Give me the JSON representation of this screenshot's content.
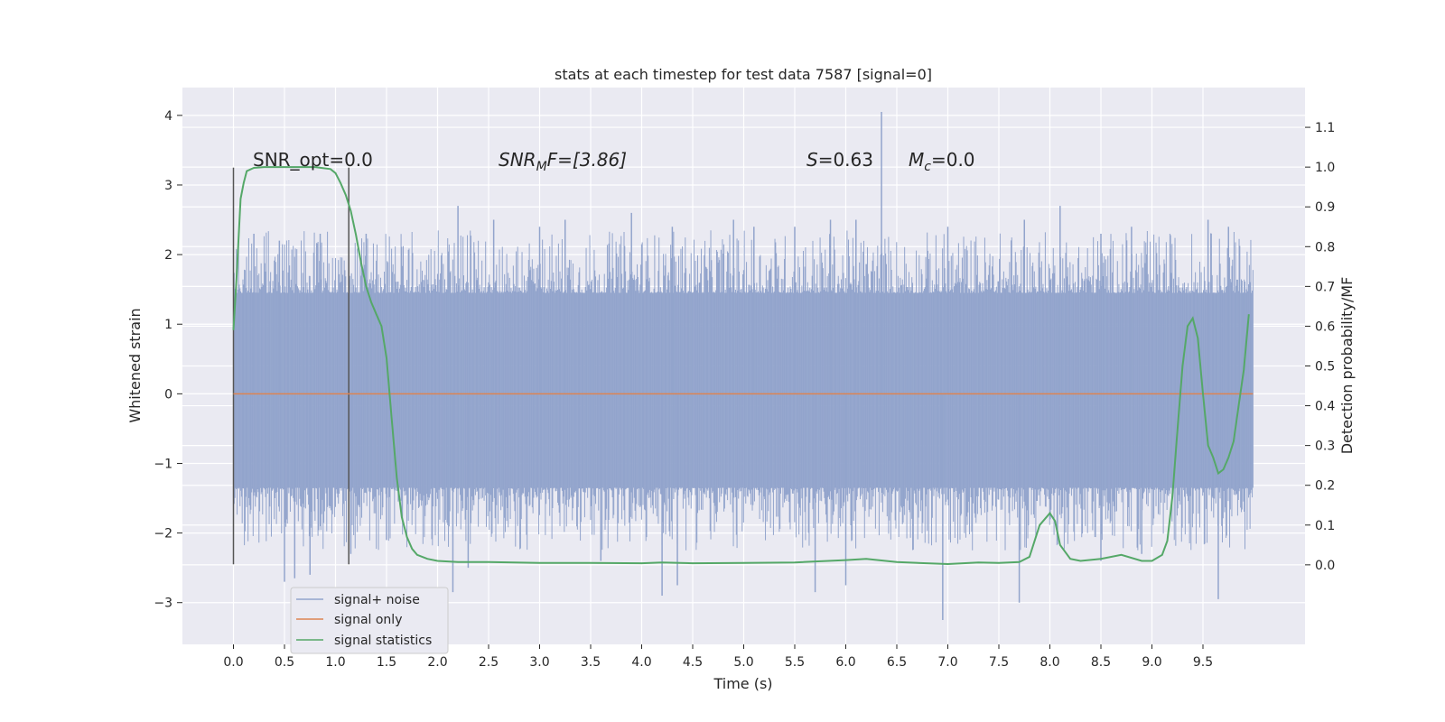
{
  "chart_data": {
    "type": "line",
    "title": "stats at each timestep for test data 7587 [signal=0]",
    "xlabel": "Time (s)",
    "ylabel": "Whitened strain",
    "ylabel_right": "Detection probability/MF",
    "xlim": [
      -0.5,
      10.5
    ],
    "ylim": [
      -3.6,
      4.4
    ],
    "ylim_right": [
      -0.2,
      1.2
    ],
    "xticks": [
      "0.0",
      "0.5",
      "1.0",
      "1.5",
      "2.0",
      "2.5",
      "3.0",
      "3.5",
      "4.0",
      "4.5",
      "5.0",
      "5.5",
      "6.0",
      "6.5",
      "7.0",
      "7.5",
      "8.0",
      "8.5",
      "9.0",
      "9.5"
    ],
    "yticks": [
      "−3",
      "−2",
      "−1",
      "0",
      "1",
      "2",
      "3",
      "4"
    ],
    "yticks_right": [
      "0.0",
      "0.1",
      "0.2",
      "0.3",
      "0.4",
      "0.5",
      "0.6",
      "0.7",
      "0.8",
      "0.9",
      "1.0",
      "1.1"
    ],
    "grid": true,
    "legend_position": "lower-left",
    "annotations": {
      "snr_opt": "SNR_opt=0.0",
      "snr_mf_prefix": "SNR",
      "snr_mf_sub": "M",
      "snr_mf_suffix": "F=[3.86]",
      "s_sym": "S",
      "s_val": "=0.63",
      "mc_sym": "M",
      "mc_sub": "c",
      "mc_val": "=0.0"
    },
    "vertical_markers": [
      0.0,
      1.13
    ],
    "series": [
      {
        "name": "signal+ noise",
        "color": "#92a4cc",
        "band": {
          "x_start": 0.0,
          "x_end": 9.99,
          "typical_low": -1.5,
          "typical_high": 1.6
        },
        "spikes": [
          [
            0.2,
            2.3
          ],
          [
            0.45,
            2.2
          ],
          [
            0.85,
            2.3
          ],
          [
            1.3,
            2.3
          ],
          [
            2.2,
            2.7
          ],
          [
            2.55,
            2.5
          ],
          [
            3.0,
            2.4
          ],
          [
            3.25,
            2.5
          ],
          [
            3.9,
            2.6
          ],
          [
            4.3,
            2.4
          ],
          [
            4.9,
            2.5
          ],
          [
            5.1,
            2.4
          ],
          [
            5.5,
            2.4
          ],
          [
            5.85,
            2.5
          ],
          [
            6.1,
            2.5
          ],
          [
            6.35,
            4.05
          ],
          [
            7.0,
            2.4
          ],
          [
            7.75,
            2.5
          ],
          [
            8.1,
            2.7
          ],
          [
            8.5,
            2.3
          ],
          [
            8.8,
            2.4
          ],
          [
            9.55,
            2.5
          ],
          [
            9.75,
            2.4
          ],
          [
            0.5,
            -2.7
          ],
          [
            0.6,
            -2.65
          ],
          [
            0.75,
            -2.6
          ],
          [
            1.15,
            -2.3
          ],
          [
            2.15,
            -2.85
          ],
          [
            2.3,
            -2.5
          ],
          [
            4.2,
            -2.9
          ],
          [
            4.35,
            -2.75
          ],
          [
            5.7,
            -2.85
          ],
          [
            6.0,
            -2.75
          ],
          [
            6.95,
            -3.25
          ],
          [
            7.7,
            -3.0
          ],
          [
            8.5,
            -2.4
          ],
          [
            9.65,
            -2.95
          ],
          [
            1.5,
            -2.1
          ],
          [
            3.6,
            -2.4
          ],
          [
            8.9,
            -2.3
          ]
        ]
      },
      {
        "name": "signal only",
        "color": "#dd8452",
        "x": [
          0.0,
          9.99
        ],
        "y": [
          0.0,
          0.0
        ]
      },
      {
        "name": "signal statistics",
        "color": "#55a868",
        "axis": "right",
        "x": [
          0.0,
          0.03,
          0.07,
          0.1,
          0.13,
          0.2,
          0.3,
          0.5,
          0.8,
          0.95,
          1.0,
          1.05,
          1.1,
          1.15,
          1.2,
          1.25,
          1.3,
          1.35,
          1.4,
          1.45,
          1.5,
          1.55,
          1.6,
          1.65,
          1.7,
          1.75,
          1.8,
          1.9,
          2.0,
          2.2,
          2.5,
          3.0,
          3.5,
          4.0,
          4.2,
          4.5,
          5.0,
          5.5,
          6.0,
          6.2,
          6.5,
          7.0,
          7.3,
          7.5,
          7.7,
          7.8,
          7.9,
          8.0,
          8.05,
          8.1,
          8.2,
          8.3,
          8.5,
          8.7,
          8.9,
          9.0,
          9.1,
          9.15,
          9.2,
          9.25,
          9.3,
          9.35,
          9.4,
          9.45,
          9.5,
          9.55,
          9.6,
          9.65,
          9.7,
          9.75,
          9.8,
          9.85,
          9.9,
          9.95
        ],
        "y": [
          0.59,
          0.72,
          0.92,
          0.96,
          0.99,
          0.998,
          1.0,
          1.0,
          1.0,
          0.995,
          0.985,
          0.96,
          0.93,
          0.89,
          0.83,
          0.76,
          0.7,
          0.66,
          0.63,
          0.6,
          0.52,
          0.37,
          0.22,
          0.12,
          0.07,
          0.04,
          0.025,
          0.015,
          0.01,
          0.007,
          0.007,
          0.005,
          0.005,
          0.004,
          0.006,
          0.004,
          0.005,
          0.006,
          0.012,
          0.015,
          0.007,
          0.002,
          0.006,
          0.005,
          0.007,
          0.02,
          0.1,
          0.13,
          0.11,
          0.05,
          0.015,
          0.01,
          0.015,
          0.025,
          0.01,
          0.01,
          0.025,
          0.06,
          0.17,
          0.34,
          0.5,
          0.6,
          0.62,
          0.57,
          0.43,
          0.3,
          0.27,
          0.23,
          0.24,
          0.27,
          0.31,
          0.4,
          0.49,
          0.63
        ]
      }
    ]
  }
}
